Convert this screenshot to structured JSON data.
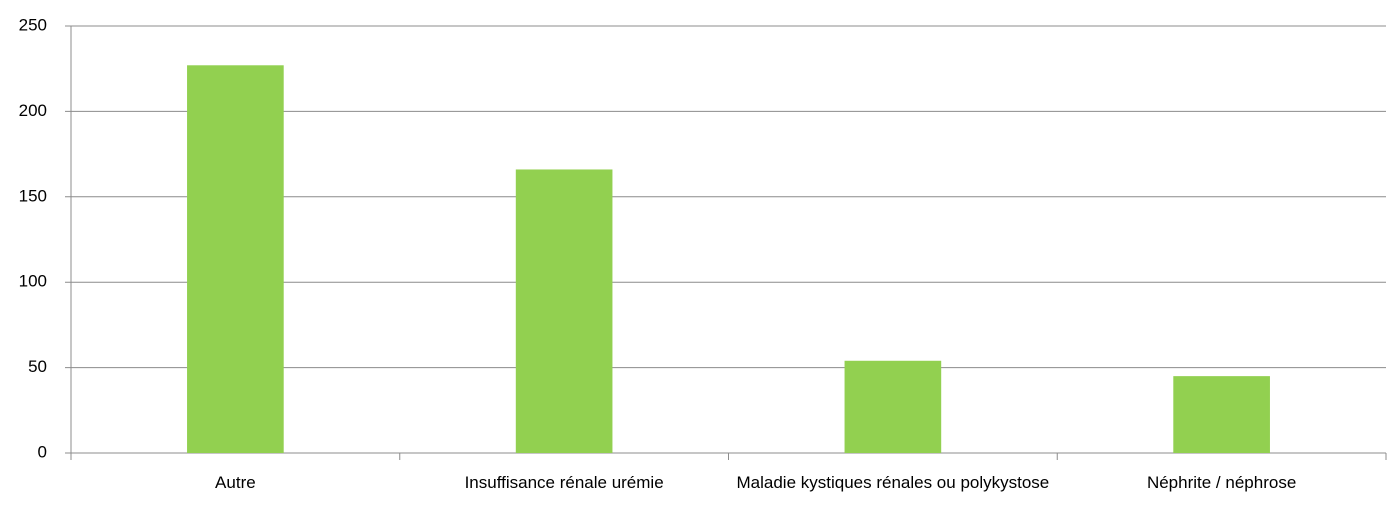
{
  "chart_data": {
    "type": "bar",
    "categories": [
      "Autre",
      "Insuffisance rénale urémie",
      "Maladie kystiques rénales ou polykystose",
      "Néphrite / néphrose"
    ],
    "values": [
      227,
      166,
      54,
      45
    ],
    "color": "#92d050",
    "ylim": [
      0,
      250
    ],
    "yticks": [
      0,
      50,
      100,
      150,
      200,
      250
    ],
    "grid": true
  }
}
